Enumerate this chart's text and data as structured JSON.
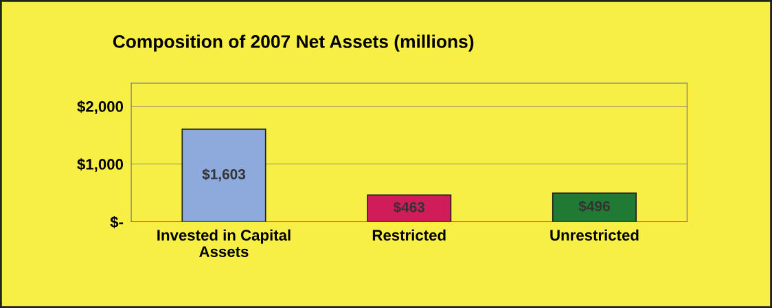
{
  "chart_data": {
    "type": "bar",
    "title": "Composition of 2007 Net Assets (millions)",
    "categories": [
      "Invested in Capital\nAssets",
      "Restricted",
      "Unrestricted"
    ],
    "values": [
      1603,
      463,
      496
    ],
    "colors": [
      "#8eaadc",
      "#d01d5a",
      "#217a33"
    ],
    "value_labels": [
      "$1,603",
      "$463",
      "$496"
    ],
    "ylim": [
      0,
      2400
    ],
    "yticks": [
      {
        "value": 0,
        "label": "$-"
      },
      {
        "value": 1000,
        "label": "$1,000"
      },
      {
        "value": 2000,
        "label": "$2,000"
      }
    ],
    "grid": "y"
  }
}
